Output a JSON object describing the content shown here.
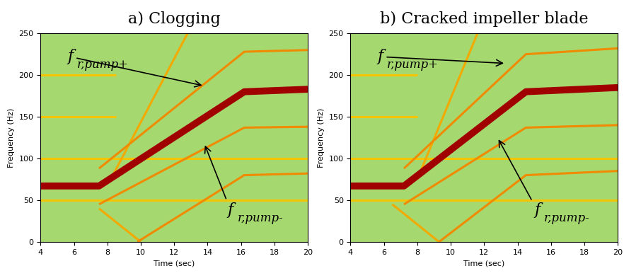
{
  "chart_data": [
    {
      "type": "line",
      "title": "a) Clogging",
      "x_label": "Time (sec)",
      "y_label": "Frequency (Hz)",
      "xlim": [
        4,
        20
      ],
      "ylim": [
        0,
        250
      ],
      "xticks": [
        4,
        6,
        8,
        10,
        12,
        14,
        16,
        18,
        20
      ],
      "yticks": [
        0,
        50,
        100,
        150,
        200,
        250
      ],
      "series": [
        {
          "color": "#f5c400",
          "x": [
            4,
            20
          ],
          "values": [
            100,
            100
          ]
        },
        {
          "color": "#f5c400",
          "x": [
            4,
            20
          ],
          "values": [
            50,
            50
          ]
        },
        {
          "color": "#f5c400",
          "x": [
            4,
            8.5
          ],
          "values": [
            150,
            150
          ]
        },
        {
          "color": "#f5c400",
          "x": [
            4,
            8.5
          ],
          "values": [
            200,
            200
          ]
        },
        {
          "color": "#f2a900",
          "x": [
            8.2,
            12.8
          ],
          "values": [
            75,
            250
          ]
        },
        {
          "color": "#f2a900",
          "x": [
            7.5,
            10.0
          ],
          "values": [
            40,
            0
          ]
        },
        {
          "color": "#f08a00",
          "x": [
            7.5,
            16.2,
            20
          ],
          "values": [
            88,
            228,
            230
          ]
        },
        {
          "color": "#f08a00",
          "x": [
            7.5,
            16.2,
            20
          ],
          "values": [
            45,
            137,
            138
          ]
        },
        {
          "color": "#f08a00",
          "x": [
            9.8,
            16.2,
            20
          ],
          "values": [
            0,
            80,
            82
          ]
        },
        {
          "color": "#a00000",
          "x": [
            4,
            7.5,
            16.2,
            20
          ],
          "values": [
            67,
            67,
            180,
            183
          ]
        }
      ],
      "annotations": [
        {
          "text": "f",
          "subscript": "r,pump+",
          "x": 13.8,
          "y": 187,
          "text_x": 5.6,
          "text_y": 222
        },
        {
          "text": "f",
          "subscript": "r,pump-",
          "x": 13.8,
          "y": 118,
          "text_x": 15.2,
          "text_y": 38
        }
      ]
    },
    {
      "type": "line",
      "title": "b) Cracked impeller blade",
      "x_label": "Time (sec)",
      "y_label": "Frequency (Hz)",
      "xlim": [
        4,
        20
      ],
      "ylim": [
        0,
        250
      ],
      "xticks": [
        4,
        6,
        8,
        10,
        12,
        14,
        16,
        18,
        20
      ],
      "yticks": [
        0,
        50,
        100,
        150,
        200,
        250
      ],
      "series": [
        {
          "color": "#f5c400",
          "x": [
            4,
            20
          ],
          "values": [
            100,
            100
          ]
        },
        {
          "color": "#f5c400",
          "x": [
            4,
            20
          ],
          "values": [
            50,
            50
          ]
        },
        {
          "color": "#f5c400",
          "x": [
            4,
            8.0
          ],
          "values": [
            150,
            150
          ]
        },
        {
          "color": "#f5c400",
          "x": [
            4,
            8.0
          ],
          "values": [
            200,
            200
          ]
        },
        {
          "color": "#f2a900",
          "x": [
            8.0,
            11.6
          ],
          "values": [
            75,
            250
          ]
        },
        {
          "color": "#f2a900",
          "x": [
            6.5,
            9.3
          ],
          "values": [
            45,
            0
          ]
        },
        {
          "color": "#f08a00",
          "x": [
            7.2,
            14.5,
            20
          ],
          "values": [
            88,
            225,
            232
          ]
        },
        {
          "color": "#f08a00",
          "x": [
            7.2,
            14.5,
            20
          ],
          "values": [
            45,
            137,
            140
          ]
        },
        {
          "color": "#f08a00",
          "x": [
            9.3,
            14.5,
            20
          ],
          "values": [
            0,
            80,
            85
          ]
        },
        {
          "color": "#a00000",
          "x": [
            4,
            7.2,
            14.5,
            20
          ],
          "values": [
            67,
            67,
            180,
            185
          ]
        }
      ],
      "annotations": [
        {
          "text": "f",
          "subscript": "r,pump+",
          "x": 13.3,
          "y": 214,
          "text_x": 5.6,
          "text_y": 222
        },
        {
          "text": "f",
          "subscript": "r,pump-",
          "x": 12.8,
          "y": 125,
          "text_x": 15.0,
          "text_y": 38
        }
      ]
    }
  ]
}
